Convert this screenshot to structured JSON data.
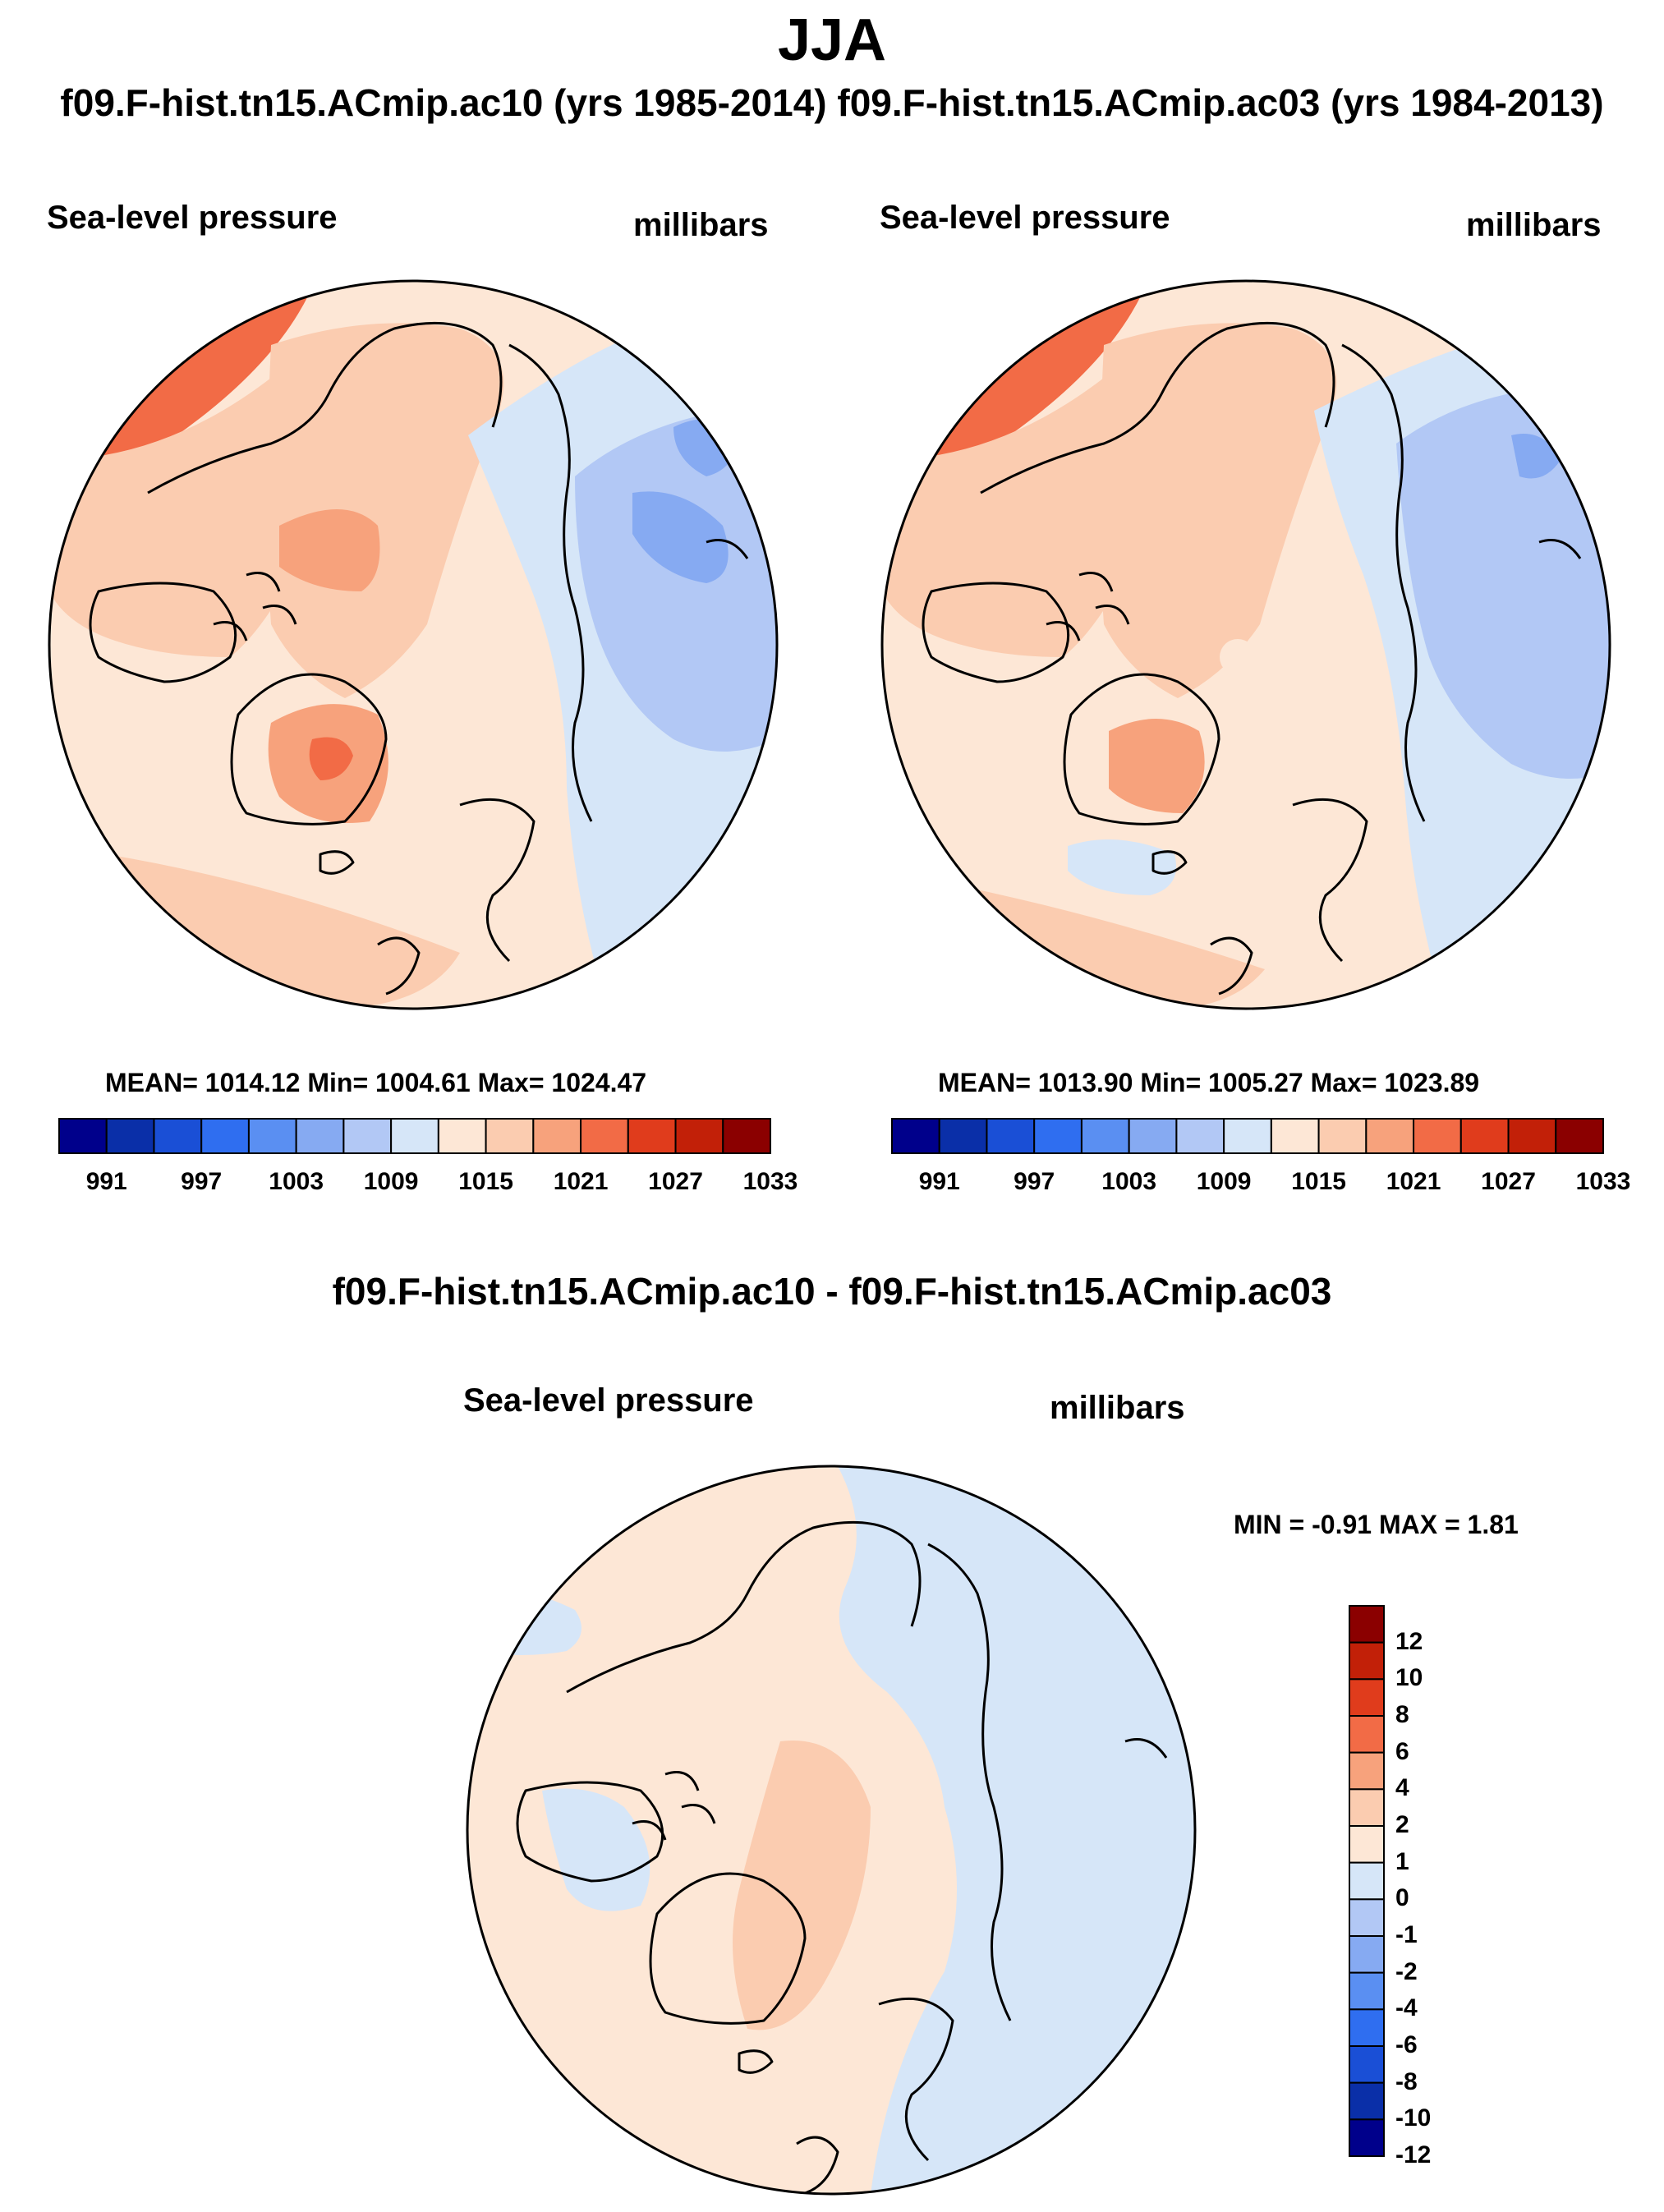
{
  "figure": {
    "title": "JJA",
    "subtitle": "f09.F-hist.tn15.ACmip.ac10 (yrs 1985-2014) f09.F-hist.tn15.ACmip.ac03 (yrs 1984-2013)",
    "diff_title": "f09.F-hist.tn15.ACmip.ac10 - f09.F-hist.tn15.ACmip.ac03"
  },
  "panels": [
    {
      "id": "ac10",
      "left_label": "Sea-level pressure",
      "right_label": "millibars",
      "stats": "MEAN= 1014.12  Min= 1004.61  Max= 1024.47"
    },
    {
      "id": "ac03",
      "left_label": "Sea-level pressure",
      "right_label": "millibars",
      "stats": "MEAN= 1013.90  Min= 1005.27  Max= 1023.89"
    },
    {
      "id": "diff",
      "left_label": "Sea-level pressure",
      "right_label": "millibars",
      "stats": "MIN =  -0.91 MAX =   1.81"
    }
  ],
  "colors": {
    "field_scale": [
      "#00008b",
      "#0a2fa8",
      "#1a4fd6",
      "#2f6ef0",
      "#5a8ff2",
      "#86aaf2",
      "#b2c8f5",
      "#d6e6f8",
      "#fde7d6",
      "#fbccb0",
      "#f7a27c",
      "#f26b46",
      "#e03c1c",
      "#c22008",
      "#8b0000"
    ],
    "diff_scale": [
      "#00008b",
      "#0a2fa8",
      "#1a4fd6",
      "#2f6ef0",
      "#5a8ff2",
      "#86aaf2",
      "#b2c8f5",
      "#d6e6f8",
      "#fde7d6",
      "#fbccb0",
      "#f7a27c",
      "#f26b46",
      "#e03c1c",
      "#c22008",
      "#8b0000"
    ]
  },
  "chart_data": [
    {
      "type": "heatmap",
      "projection": "north-polar-stereographic",
      "title": "Sea-level pressure",
      "units": "millibars",
      "case": "f09.F-hist.tn15.ACmip.ac10 (yrs 1985-2014)",
      "mean": 1014.12,
      "min": 1004.61,
      "max": 1024.47,
      "colorbar_levels": [
        991,
        994,
        997,
        1000,
        1003,
        1006,
        1009,
        1012,
        1015,
        1018,
        1021,
        1024,
        1027,
        1030,
        1033
      ],
      "colorbar_labels": [
        "991",
        "997",
        "1003",
        "1009",
        "1015",
        "1021",
        "1027",
        "1033"
      ],
      "colorbar_orientation": "horizontal"
    },
    {
      "type": "heatmap",
      "projection": "north-polar-stereographic",
      "title": "Sea-level pressure",
      "units": "millibars",
      "case": "f09.F-hist.tn15.ACmip.ac03 (yrs 1984-2013)",
      "mean": 1013.9,
      "min": 1005.27,
      "max": 1023.89,
      "colorbar_levels": [
        991,
        994,
        997,
        1000,
        1003,
        1006,
        1009,
        1012,
        1015,
        1018,
        1021,
        1024,
        1027,
        1030,
        1033
      ],
      "colorbar_labels": [
        "991",
        "997",
        "1003",
        "1009",
        "1015",
        "1021",
        "1027",
        "1033"
      ],
      "colorbar_orientation": "horizontal"
    },
    {
      "type": "heatmap",
      "projection": "north-polar-stereographic",
      "title": "Sea-level pressure",
      "units": "millibars",
      "case": "f09.F-hist.tn15.ACmip.ac10 - f09.F-hist.tn15.ACmip.ac03",
      "min": -0.91,
      "max": 1.81,
      "colorbar_levels": [
        -12,
        -10,
        -8,
        -6,
        -4,
        -2,
        -1,
        0,
        1,
        2,
        4,
        6,
        8,
        10,
        12
      ],
      "colorbar_labels": [
        "12",
        "10",
        "8",
        "6",
        "4",
        "2",
        "1",
        "0",
        "-1",
        "-2",
        "-4",
        "-6",
        "-8",
        "-10",
        "-12"
      ],
      "colorbar_orientation": "vertical"
    }
  ]
}
